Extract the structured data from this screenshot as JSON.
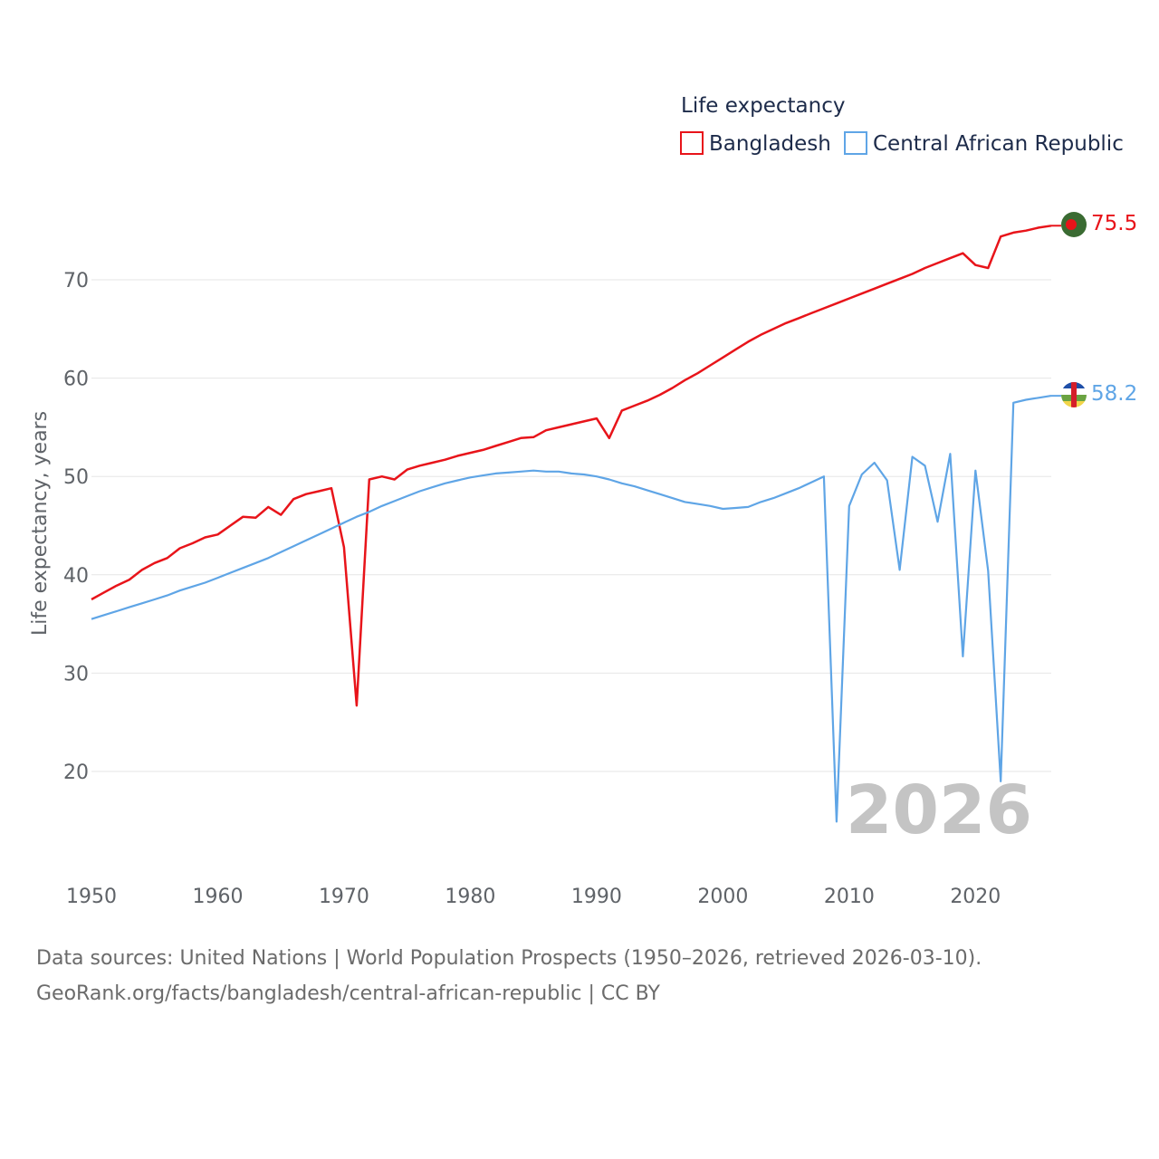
{
  "chart_data": {
    "type": "line",
    "title": "Life expectancy",
    "ylabel": "Life expectancy, years",
    "xlabel": "",
    "xlim": [
      1950,
      2026
    ],
    "ylim": [
      10,
      80
    ],
    "x_ticks": [
      1950,
      1960,
      1970,
      1980,
      1990,
      2000,
      2010,
      2020
    ],
    "y_ticks": [
      20,
      30,
      40,
      50,
      60,
      70
    ],
    "current_year": "2026",
    "legend_position": "top-right",
    "x": [
      1950,
      1951,
      1952,
      1953,
      1954,
      1955,
      1956,
      1957,
      1958,
      1959,
      1960,
      1961,
      1962,
      1963,
      1964,
      1965,
      1966,
      1967,
      1968,
      1969,
      1970,
      1971,
      1972,
      1973,
      1974,
      1975,
      1976,
      1977,
      1978,
      1979,
      1980,
      1981,
      1982,
      1983,
      1984,
      1985,
      1986,
      1987,
      1988,
      1989,
      1990,
      1991,
      1992,
      1993,
      1994,
      1995,
      1996,
      1997,
      1998,
      1999,
      2000,
      2001,
      2002,
      2003,
      2004,
      2005,
      2006,
      2007,
      2008,
      2009,
      2010,
      2011,
      2012,
      2013,
      2014,
      2015,
      2016,
      2017,
      2018,
      2019,
      2020,
      2021,
      2022,
      2023,
      2024,
      2025,
      2026
    ],
    "series": [
      {
        "name": "Bangladesh",
        "color": "#e8141a",
        "end_label": "75.5",
        "flag": "bangladesh-flag",
        "values": [
          37.5,
          38.2,
          38.9,
          39.5,
          40.5,
          41.2,
          41.7,
          42.7,
          43.2,
          43.8,
          44.1,
          45.0,
          45.9,
          45.8,
          46.9,
          46.1,
          47.7,
          48.2,
          48.5,
          48.8,
          42.8,
          26.7,
          49.7,
          50.0,
          49.7,
          50.7,
          51.1,
          51.4,
          51.7,
          52.1,
          52.4,
          52.7,
          53.1,
          53.5,
          53.9,
          54.0,
          54.7,
          55.0,
          55.3,
          55.6,
          55.9,
          53.9,
          56.7,
          57.2,
          57.7,
          58.3,
          59.0,
          59.8,
          60.5,
          61.3,
          62.1,
          62.9,
          63.7,
          64.4,
          65.0,
          65.6,
          66.1,
          66.6,
          67.1,
          67.6,
          68.1,
          68.6,
          69.1,
          69.6,
          70.1,
          70.6,
          71.2,
          71.7,
          72.2,
          72.7,
          71.5,
          71.2,
          74.4,
          74.8,
          75.0,
          75.3,
          75.5
        ]
      },
      {
        "name": "Central African Republic",
        "color": "#5fa5e6",
        "end_label": "58.2",
        "flag": "central-african-republic-flag",
        "values": [
          35.5,
          35.9,
          36.3,
          36.7,
          37.1,
          37.5,
          37.9,
          38.4,
          38.8,
          39.2,
          39.7,
          40.2,
          40.7,
          41.2,
          41.7,
          42.3,
          42.9,
          43.5,
          44.1,
          44.7,
          45.3,
          45.9,
          46.4,
          47.0,
          47.5,
          48.0,
          48.5,
          48.9,
          49.3,
          49.6,
          49.9,
          50.1,
          50.3,
          50.4,
          50.5,
          50.6,
          50.5,
          50.5,
          50.3,
          50.2,
          50.0,
          49.7,
          49.3,
          49.0,
          48.6,
          48.2,
          47.8,
          47.4,
          47.2,
          47.0,
          46.7,
          46.8,
          46.9,
          47.4,
          47.8,
          48.3,
          48.8,
          49.4,
          50.0,
          14.9,
          47.0,
          50.2,
          51.4,
          49.6,
          40.5,
          52.0,
          51.1,
          45.4,
          52.3,
          31.7,
          50.6,
          40.4,
          19.0,
          57.5,
          57.8,
          58.0,
          58.2
        ]
      }
    ]
  },
  "footer": {
    "sources": "Data sources: United Nations | World Population Prospects (1950–2026, retrieved 2026-03-10).",
    "link": "GeoRank.org/facts/bangladesh/central-african-republic | CC BY"
  }
}
